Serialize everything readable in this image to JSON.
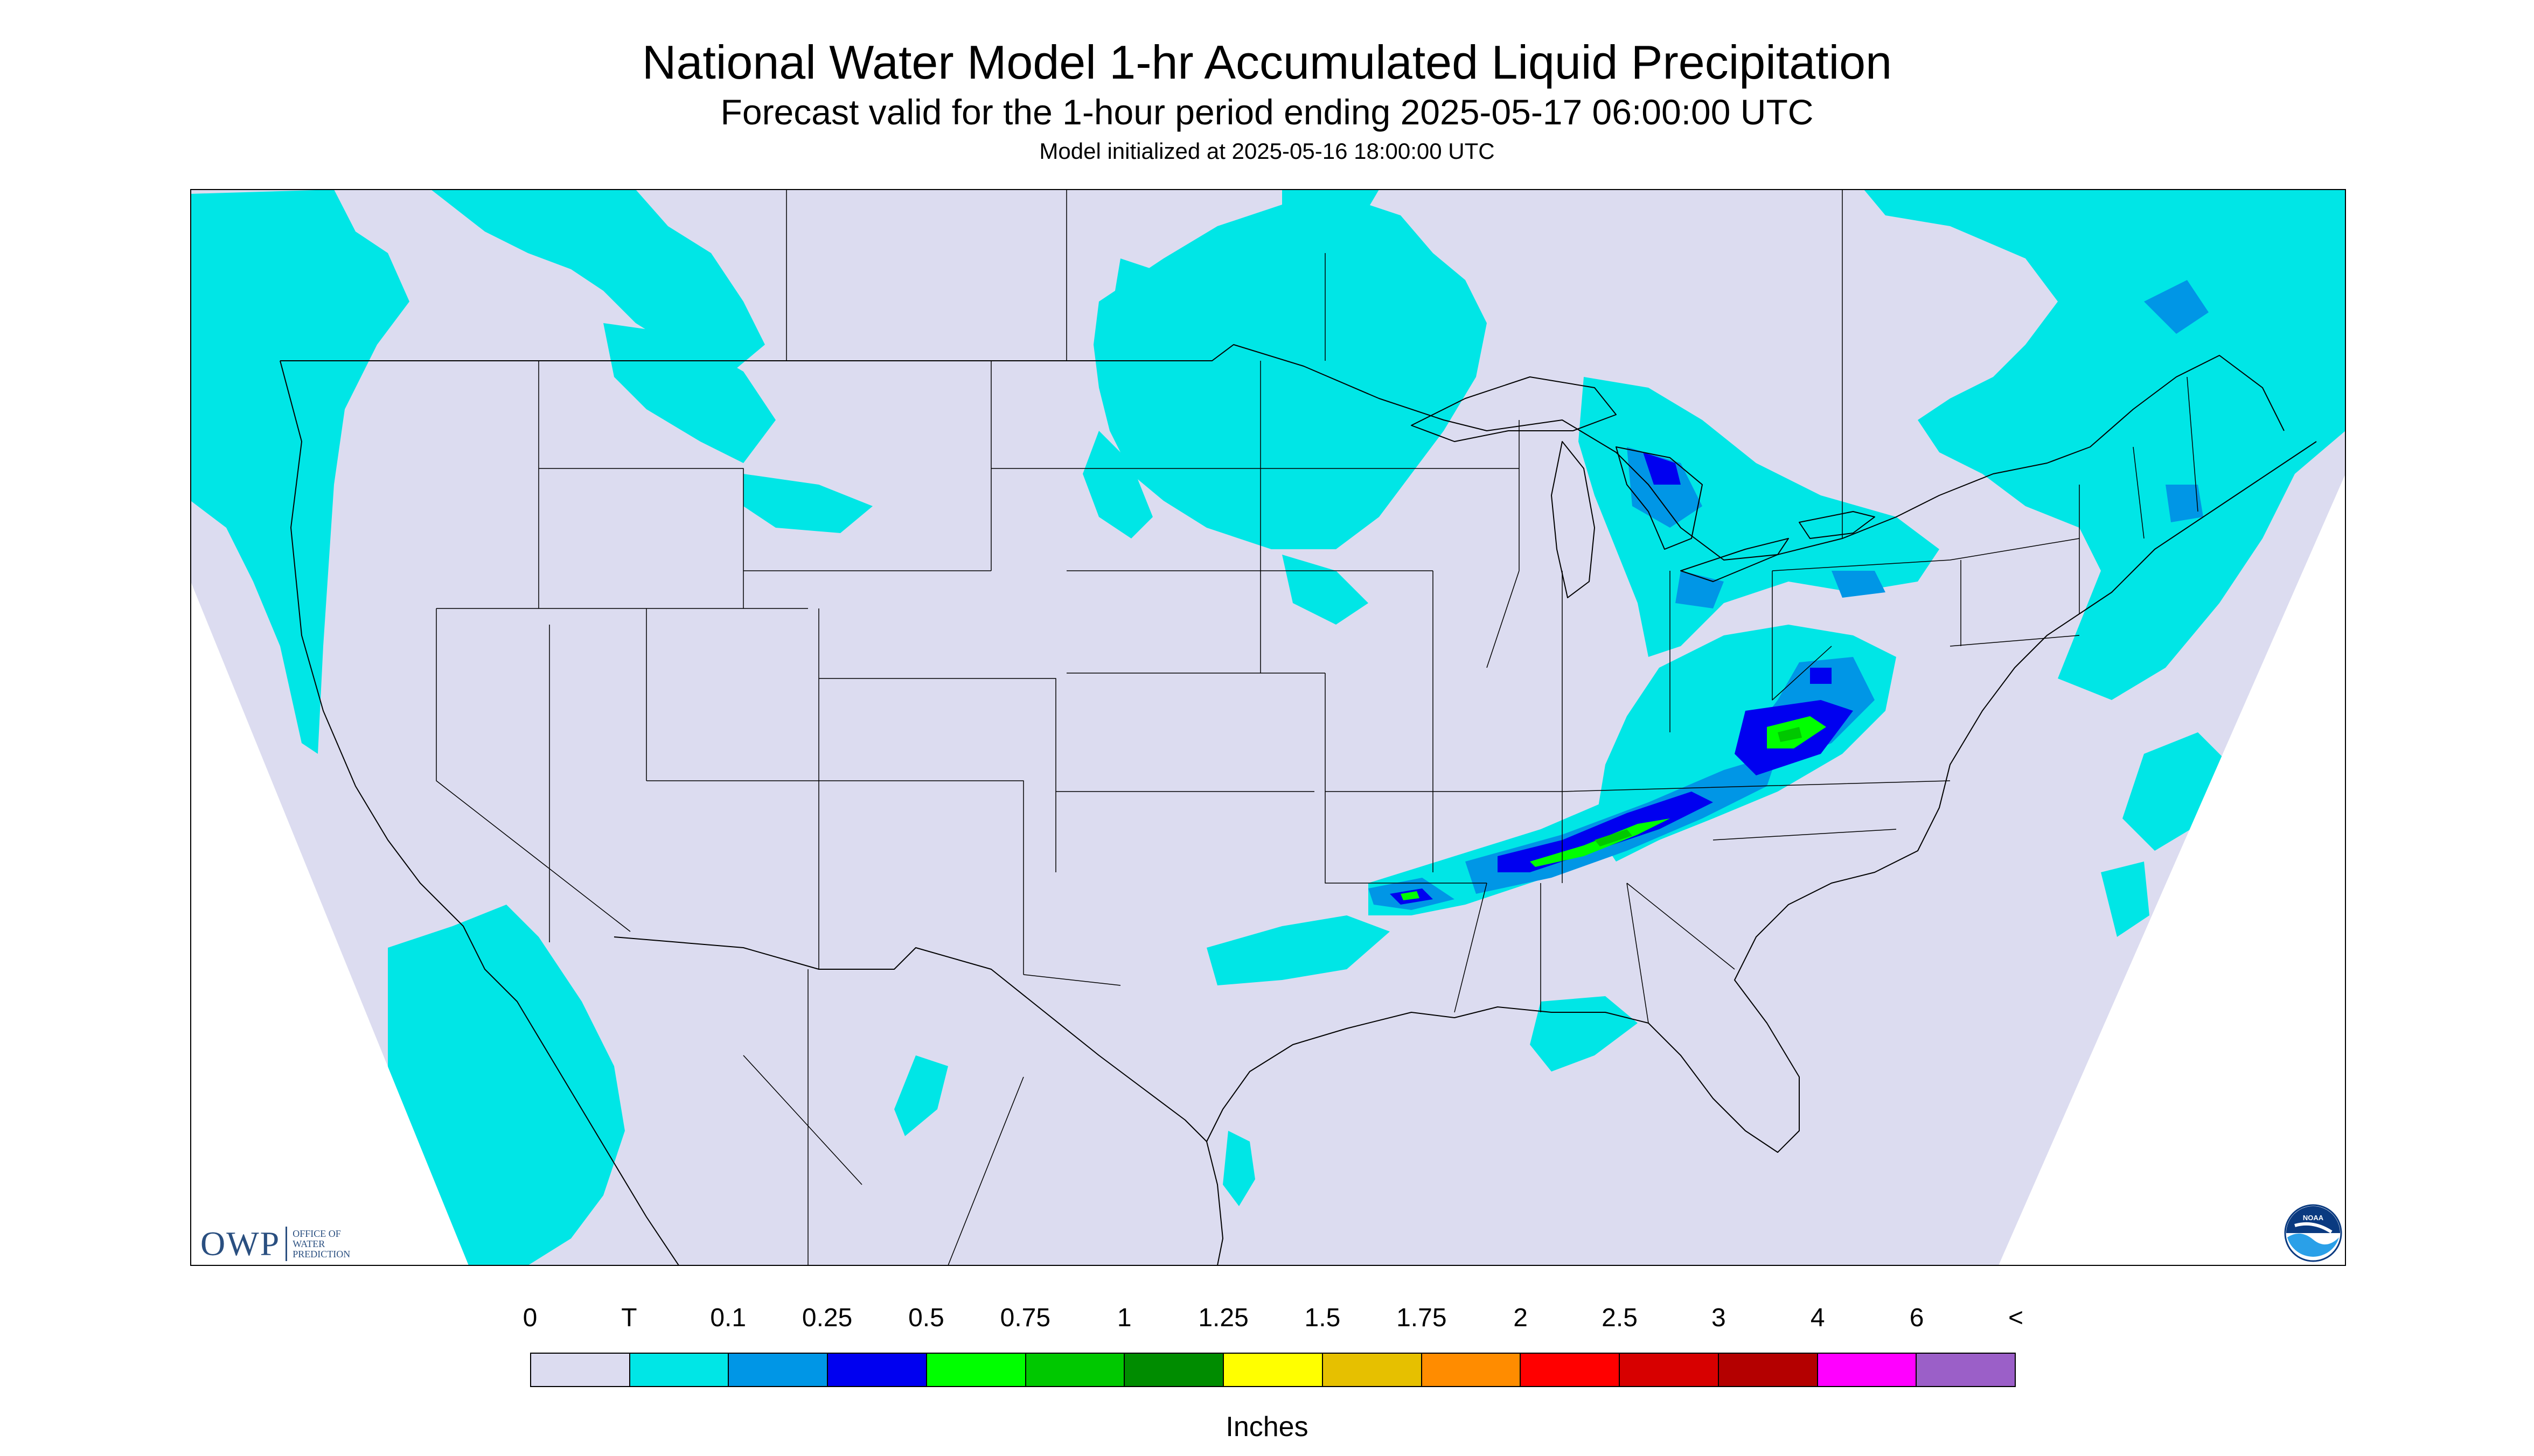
{
  "header": {
    "title": "National Water Model 1-hr Accumulated Liquid Precipitation",
    "subtitle": "Forecast valid for the 1-hour period ending 2025-05-17 06:00:00 UTC",
    "init": "Model initialized at 2025-05-16 18:00:00 UTC"
  },
  "logos": {
    "owp_big": "OWP",
    "owp_small": [
      "OFFICE OF",
      "WATER",
      "PREDICTION"
    ],
    "noaa": "NOAA"
  },
  "legend": {
    "labels": [
      "0",
      "T",
      "0.1",
      "0.25",
      "0.5",
      "0.75",
      "1",
      "1.25",
      "1.5",
      "1.75",
      "2",
      "2.5",
      "3",
      "4",
      "6",
      "<"
    ],
    "colors": [
      "#dcdcf0",
      "#00e6e6",
      "#0096e6",
      "#0000f0",
      "#00ff00",
      "#00c800",
      "#008c00",
      "#ffff00",
      "#e6c000",
      "#ff8c00",
      "#ff0000",
      "#d70000",
      "#b40000",
      "#ff00ff",
      "#9b5fc8"
    ],
    "units": "Inches"
  },
  "map_colors": {
    "background": "#dcdcf0",
    "trace": "#00e6e6",
    "light": "#0096e6",
    "moderate": "#0000f0",
    "heavy": "#00ff00",
    "heavier": "#00c800",
    "border": "#000000"
  }
}
